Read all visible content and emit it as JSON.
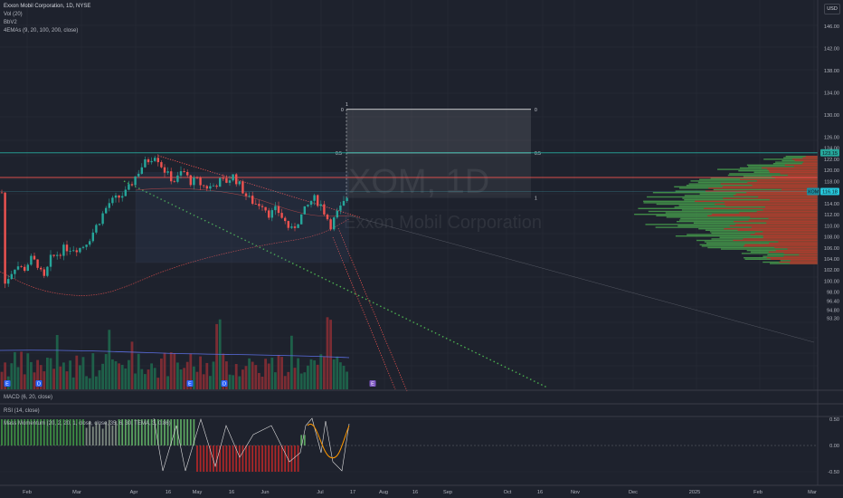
{
  "header": {
    "symbol_line": "Exxon Mobil Corporation, 1D, NYSE",
    "indicators": [
      "Vol (20)",
      "BbV2",
      "4EMAs (9, 20, 100, 200, close)"
    ],
    "currency": "USD"
  },
  "watermark": {
    "ticker": "XOM, 1D",
    "name": "Exxon Mobil Corporation"
  },
  "price_axis": {
    "labels": [
      "146.00",
      "142.00",
      "138.00",
      "134.00",
      "130.00",
      "126.00",
      "124.00",
      "122.00",
      "120.00",
      "118.00",
      "114.00",
      "112.00",
      "110.00",
      "108.00",
      "106.00",
      "104.00",
      "102.00",
      "100.00",
      "98.00",
      "96.40",
      "94.80",
      "93.30"
    ],
    "values": [
      146,
      142,
      138,
      134,
      130,
      126,
      124,
      122,
      120,
      118,
      114,
      112,
      110,
      108,
      106,
      104,
      102,
      100,
      98,
      96.4,
      94.8,
      93.3
    ],
    "tags": [
      {
        "text": "123.15",
        "value": 123.15,
        "color": "#26a69a"
      },
      {
        "text": "XOM",
        "value": 116.18,
        "color": "#26c6da"
      },
      {
        "text": "116.18",
        "value": 116.18,
        "color": "#26c6da"
      }
    ],
    "lines": [
      {
        "value": 123.15,
        "color": "#26a69a"
      },
      {
        "value": 118.7,
        "color": "#ef5350"
      },
      {
        "value": 116.18,
        "color": "#4dd0e1"
      }
    ]
  },
  "time_axis": {
    "labels": [
      "Feb",
      "Mar",
      "Apr",
      "16",
      "May",
      "16",
      "Jun",
      "Jul",
      "17",
      "Aug",
      "16",
      "Sep",
      "Oct",
      "16",
      "Nov",
      "Dec",
      "2025",
      "Feb",
      "Mar"
    ]
  },
  "fib": {
    "labels": {
      "top_left": "0",
      "top_mid": "1",
      "top_right": "0",
      "mid_left": "0.5",
      "mid_right": "0.5",
      "bot_right": "1"
    },
    "top": 131,
    "mid": 123.15,
    "bottom": 115.0
  },
  "events": [
    "E",
    "D",
    "E",
    "D",
    "E"
  ],
  "panes": {
    "macd": {
      "title": "MACD (6, 20, close)"
    },
    "rsi": {
      "title": "RSI (14, close)"
    },
    "momentum": {
      "title": "Mass Momentum (20, 2, 20, 1, close, close, 35, 6, 30, TEMA, 3, 0.86)",
      "axis_labels": [
        "0.50",
        "0.00",
        "-0.50"
      ],
      "axis_values": [
        0.5,
        0,
        -0.5
      ]
    }
  },
  "colors": {
    "bg": "#1e222d",
    "up": "#26a69a",
    "down": "#ef5350",
    "grid": "#2a2e39"
  }
}
